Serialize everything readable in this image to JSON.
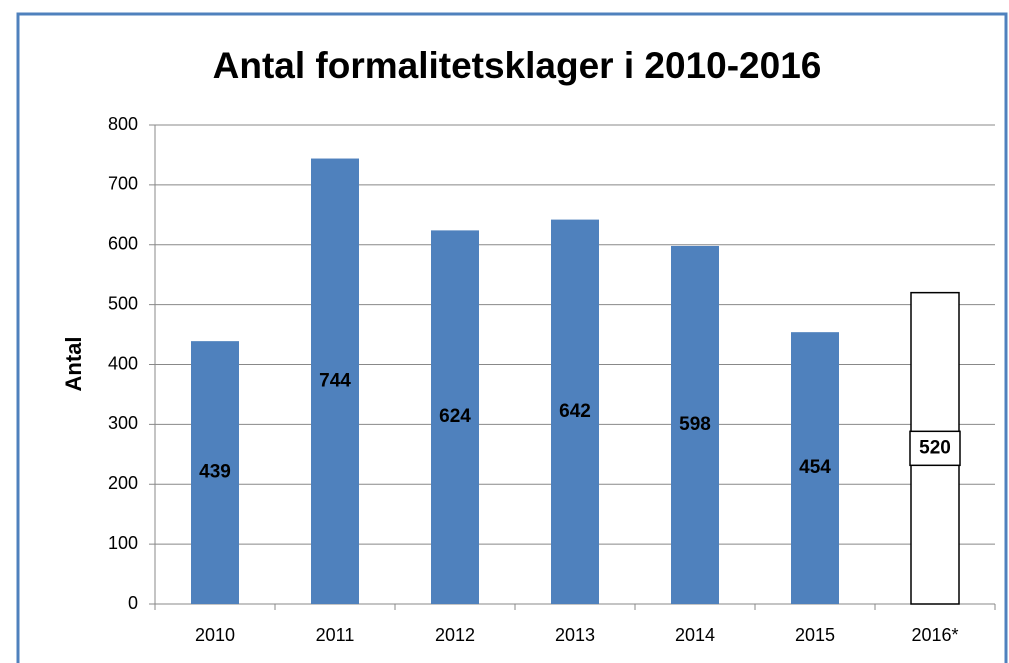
{
  "chart_data": {
    "type": "bar",
    "title": "Antal formalitetsklager i 2010-2016",
    "ylabel": "Antal",
    "categories": [
      "2010",
      "2011",
      "2012",
      "2013",
      "2014",
      "2015",
      "2016*"
    ],
    "values": [
      439,
      744,
      624,
      642,
      598,
      454,
      520
    ],
    "colors": [
      "#4f81bd",
      "#4f81bd",
      "#4f81bd",
      "#4f81bd",
      "#4f81bd",
      "#4f81bd",
      "#ffffff"
    ],
    "edgecolors": [
      null,
      null,
      null,
      null,
      null,
      null,
      "#000000"
    ],
    "ylim": [
      0,
      800
    ],
    "yticks": [
      0,
      100,
      200,
      300,
      400,
      500,
      600,
      700,
      800
    ],
    "grid": true
  }
}
